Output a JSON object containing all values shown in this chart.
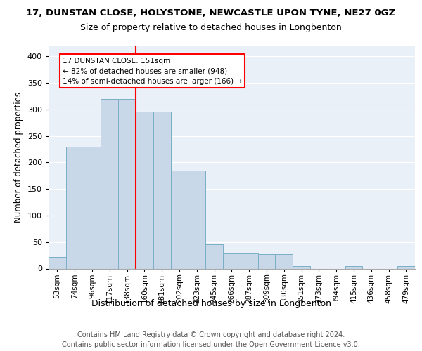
{
  "title1": "17, DUNSTAN CLOSE, HOLYSTONE, NEWCASTLE UPON TYNE, NE27 0GZ",
  "title2": "Size of property relative to detached houses in Longbenton",
  "xlabel": "Distribution of detached houses by size in Longbenton",
  "ylabel": "Number of detached properties",
  "categories": [
    "53sqm",
    "74sqm",
    "96sqm",
    "117sqm",
    "138sqm",
    "160sqm",
    "181sqm",
    "202sqm",
    "223sqm",
    "245sqm",
    "266sqm",
    "287sqm",
    "309sqm",
    "330sqm",
    "351sqm",
    "373sqm",
    "394sqm",
    "415sqm",
    "436sqm",
    "458sqm",
    "479sqm"
  ],
  "values": [
    22,
    230,
    230,
    320,
    320,
    295,
    295,
    185,
    185,
    46,
    29,
    29,
    27,
    27,
    5,
    0,
    0,
    5,
    0,
    0,
    4
  ],
  "bar_color": "#c8d8e8",
  "bar_edgecolor": "#7aafc8",
  "property_line_label": "17 DUNSTAN CLOSE: 151sqm",
  "annotation_line1": "← 82% of detached houses are smaller (948)",
  "annotation_line2": "14% of semi-detached houses are larger (166) →",
  "annotation_box_color": "white",
  "annotation_box_edgecolor": "red",
  "vline_color": "red",
  "footer1": "Contains HM Land Registry data © Crown copyright and database right 2024.",
  "footer2": "Contains public sector information licensed under the Open Government Licence v3.0.",
  "background_color": "#eaf0f8",
  "ylim": [
    0,
    420
  ],
  "yticks": [
    0,
    50,
    100,
    150,
    200,
    250,
    300,
    350,
    400
  ],
  "title1_fontsize": 9.5,
  "title2_fontsize": 9,
  "xlabel_fontsize": 9,
  "ylabel_fontsize": 8.5,
  "tick_fontsize": 7.5,
  "footer_fontsize": 7,
  "vline_x_index": 5
}
